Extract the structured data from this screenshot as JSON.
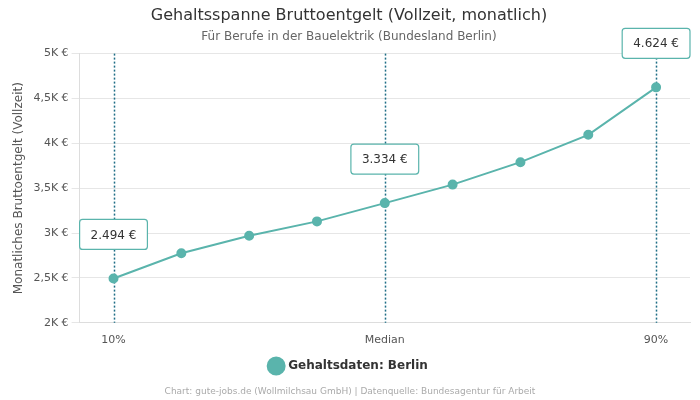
{
  "chart_data": {
    "type": "line",
    "title": "Gehaltsspanne Bruttoentgelt (Vollzeit, monatlich)",
    "subtitle": "Für Berufe in der Bauelektrik (Bundesland Berlin)",
    "y_label": "Monatliches Bruttoentgelt (Vollzeit)",
    "source": "Chart: gute-jobs.de (Wollmilchsau GmbH) | Datenquelle: Bundesagentur für Arbeit",
    "categories": [
      "10%",
      null,
      null,
      null,
      "Median",
      null,
      null,
      null,
      "90%"
    ],
    "series": [
      {
        "name": "Gehaltsdaten: Berlin",
        "color": "#5ab4ac",
        "marker": "circle",
        "values": [
          2494,
          2775,
          2970,
          3130,
          3334,
          3540,
          3790,
          4095,
          4624
        ],
        "value_labels": [
          "2.494 €",
          null,
          null,
          null,
          "3.334 €",
          null,
          null,
          null,
          "4.624 €"
        ]
      }
    ],
    "ylim": [
      2000,
      5000
    ],
    "yticks": [
      {
        "value": 2000,
        "label": "2K €"
      },
      {
        "value": 2500,
        "label": "2,5K €"
      },
      {
        "value": 3000,
        "label": "3K €"
      },
      {
        "value": 3500,
        "label": "3,5K €"
      },
      {
        "value": 4000,
        "label": "4K €"
      },
      {
        "value": 4500,
        "label": "4,5K €"
      },
      {
        "value": 5000,
        "label": "5K €"
      }
    ],
    "grid": true,
    "legend": "bottom",
    "data_labels": true
  }
}
